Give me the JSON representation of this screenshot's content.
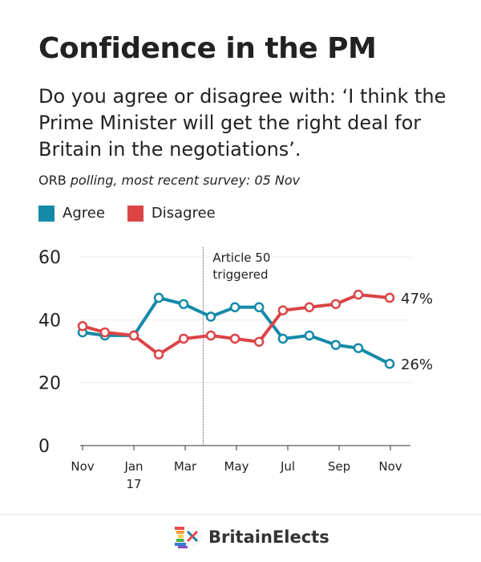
{
  "header": {
    "title": "Confidence in the PM",
    "subtitle": "Do you agree or disagree with: ‘I think the Prime Minister will get the right deal for Britain in the negotiations’.",
    "source_org": "ORB",
    "source_rest": " polling, most recent survey: 05 Nov"
  },
  "footer": {
    "brand": "BritainElects"
  },
  "chart_data": {
    "type": "line",
    "title": "Confidence in the PM",
    "xlabel": "",
    "ylabel": "",
    "ylim": [
      0,
      60
    ],
    "yticks": [
      0,
      20,
      40,
      60
    ],
    "xlim_months_from_nov_2016": [
      0,
      12
    ],
    "xticks": [
      {
        "month": 0,
        "label": "Nov",
        "sub": ""
      },
      {
        "month": 2,
        "label": "Jan",
        "sub": "17"
      },
      {
        "month": 4,
        "label": "Mar",
        "sub": ""
      },
      {
        "month": 6,
        "label": "May",
        "sub": ""
      },
      {
        "month": 8,
        "label": "Jul",
        "sub": ""
      },
      {
        "month": 10,
        "label": "Sep",
        "sub": ""
      },
      {
        "month": 12,
        "label": "Nov",
        "sub": ""
      }
    ],
    "x": [
      0,
      0.87,
      2.0,
      2.97,
      3.94,
      5.0,
      5.94,
      6.88,
      7.81,
      8.84,
      9.87,
      10.75,
      11.97
    ],
    "series": [
      {
        "name": "Agree",
        "color": "#138aa8",
        "values": [
          36,
          35,
          35,
          47,
          45,
          41,
          44,
          44,
          34,
          35,
          32,
          31,
          26
        ],
        "end_label": "26%"
      },
      {
        "name": "Disagree",
        "color": "#dc4446",
        "values": [
          38,
          36,
          35,
          29,
          34,
          35,
          34,
          33,
          43,
          44,
          45,
          48,
          47
        ],
        "end_label": "47%"
      }
    ],
    "annotation": {
      "month": 4.7,
      "line1": "Article 50",
      "line2": "triggered"
    },
    "grid": true,
    "legend": "top-left"
  }
}
